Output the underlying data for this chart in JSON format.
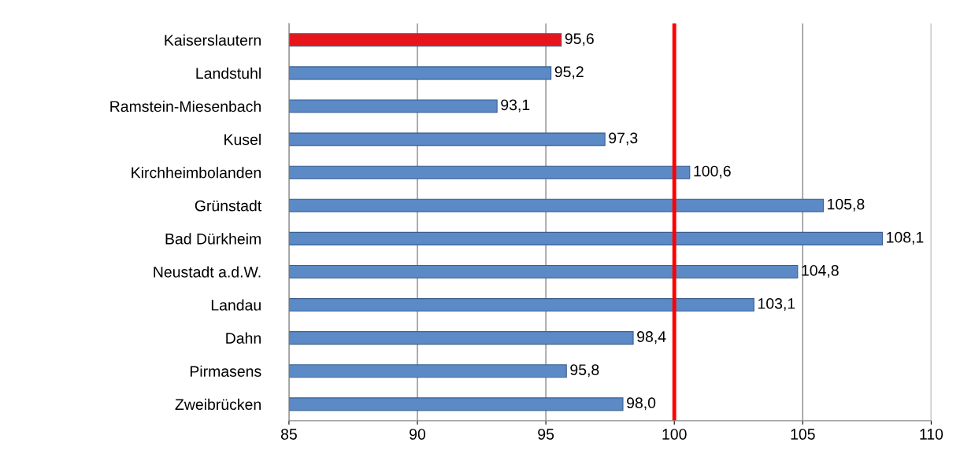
{
  "chart_data": {
    "type": "bar",
    "orientation": "horizontal",
    "categories": [
      "Kaiserslautern",
      "Landstuhl",
      "Ramstein-Miesenbach",
      "Kusel",
      "Kirchheimbolanden",
      "Grünstadt",
      "Bad Dürkheim",
      "Neustadt a.d.W.",
      "Landau",
      "Dahn",
      "Pirmasens",
      "Zweibrücken"
    ],
    "values": [
      95.6,
      95.2,
      93.1,
      97.3,
      100.6,
      105.8,
      108.1,
      104.8,
      103.1,
      98.4,
      95.8,
      98.0
    ],
    "colors": [
      "#e8141b",
      "#5b8ac6",
      "#5b8ac6",
      "#5b8ac6",
      "#5b8ac6",
      "#5b8ac6",
      "#5b8ac6",
      "#5b8ac6",
      "#5b8ac6",
      "#5b8ac6",
      "#5b8ac6",
      "#5b8ac6"
    ],
    "value_labels": [
      "95,6",
      "95,2",
      "93,1",
      "97,3",
      "100,6",
      "105,8",
      "108,1",
      "104,8",
      "103,1",
      "98,4",
      "95,8",
      "98,0"
    ],
    "xlim": [
      85,
      110
    ],
    "xticks": [
      85,
      90,
      95,
      100,
      105,
      110
    ],
    "grid": "x",
    "ref_lines": [
      {
        "axis": "x",
        "value": 100,
        "color": "#ff0000"
      }
    ]
  }
}
